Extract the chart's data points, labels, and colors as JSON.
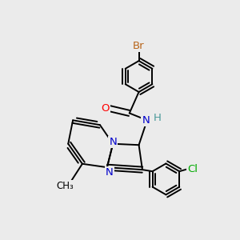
{
  "bg_color": "#ebebeb",
  "bond_color": "#000000",
  "bond_width": 1.4,
  "atoms": {
    "Br": {
      "color": "#b8651a"
    },
    "O": {
      "color": "#ff0000"
    },
    "N": {
      "color": "#0000cc"
    },
    "H": {
      "color": "#4a9a9a"
    },
    "Cl": {
      "color": "#00aa00"
    },
    "C": {
      "color": "#000000"
    }
  },
  "fontsize": 9.5
}
